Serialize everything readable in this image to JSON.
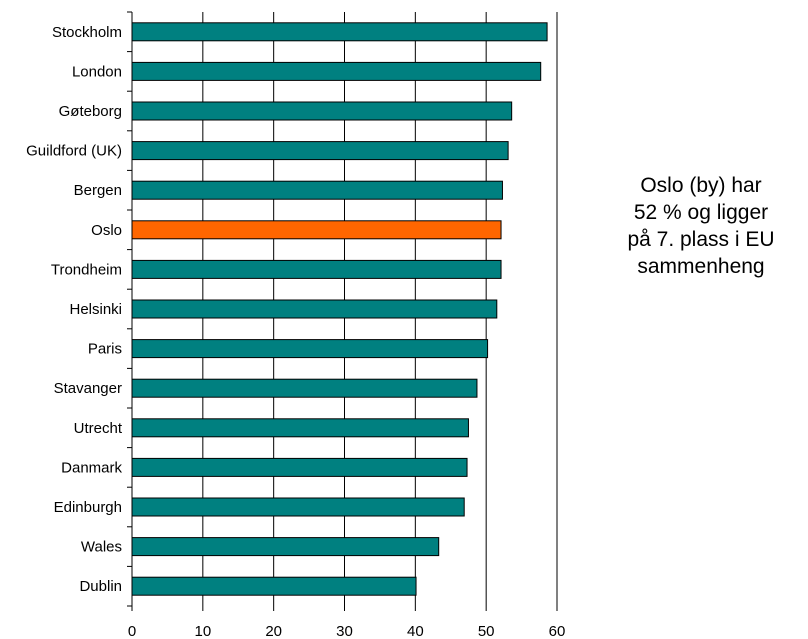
{
  "chart_data": {
    "type": "bar",
    "orientation": "horizontal",
    "categories": [
      "Stockholm",
      "London",
      "Gøteborg",
      "Guildford (UK)",
      "Bergen",
      "Oslo",
      "Trondheim",
      "Helsinki",
      "Paris",
      "Stavanger",
      "Utrecht",
      "Danmark",
      "Edinburgh",
      "Wales",
      "Dublin"
    ],
    "values": [
      58.6,
      57.7,
      53.6,
      53.1,
      52.3,
      52.1,
      52.1,
      51.5,
      50.2,
      48.7,
      47.5,
      47.3,
      46.9,
      43.3,
      40.1
    ],
    "highlight_index": 5,
    "colors": {
      "bar": "#008080",
      "highlight": "#FF6600",
      "axis": "#000000",
      "grid": "#000000"
    },
    "xlim": [
      0,
      60
    ],
    "xticks": [
      "0",
      "10",
      "20",
      "30",
      "40",
      "50",
      "60"
    ],
    "grid": true,
    "annotation": [
      "Oslo (by) har",
      "52 % og ligger",
      "på 7. plass i EU",
      "sammenheng"
    ]
  }
}
